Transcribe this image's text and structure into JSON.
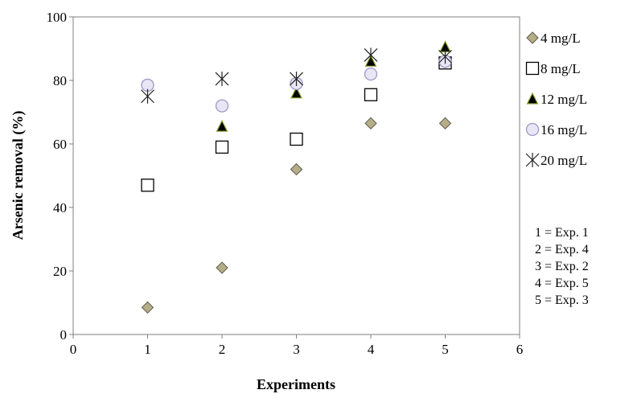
{
  "chart_data": {
    "type": "scatter",
    "title": "",
    "xlabel": "Experiments",
    "ylabel": "Arsenic removal (%)",
    "xlim": [
      0,
      6
    ],
    "ylim": [
      0,
      100
    ],
    "x_ticks": [
      0,
      1,
      2,
      3,
      4,
      5,
      6
    ],
    "y_ticks": [
      0,
      20,
      40,
      60,
      80,
      100
    ],
    "grid": false,
    "legend_position": "right",
    "x": [
      1,
      2,
      3,
      4,
      5
    ],
    "series": [
      {
        "name": "4 mg/L",
        "marker": "diamond",
        "color": "#b5ad88",
        "edge": "#5c5a48",
        "values": [
          8.5,
          21,
          52,
          66.5,
          66.5
        ]
      },
      {
        "name": "8 mg/L",
        "marker": "square",
        "color": "#ffffff",
        "edge": "#000000",
        "values": [
          47,
          59,
          61.5,
          75.5,
          85.5
        ]
      },
      {
        "name": "12 mg/L",
        "marker": "triangle",
        "color": "#000000",
        "edge": "#8da832",
        "values": [
          null,
          65.5,
          76,
          86,
          90.5
        ]
      },
      {
        "name": "16 mg/L",
        "marker": "circle",
        "color": "#e8e6f4",
        "edge": "#9f97c6",
        "values": [
          78.5,
          72,
          79,
          82,
          86
        ]
      },
      {
        "name": "20 mg/L",
        "marker": "star",
        "color": "#000000",
        "edge": "#222222",
        "values": [
          75,
          80.5,
          80.5,
          88,
          87.5
        ]
      }
    ],
    "notes": [
      "1 = Exp. 1",
      "2 = Exp. 4",
      "3 = Exp. 2",
      "4 = Exp. 5",
      "5 = Exp. 3"
    ]
  }
}
